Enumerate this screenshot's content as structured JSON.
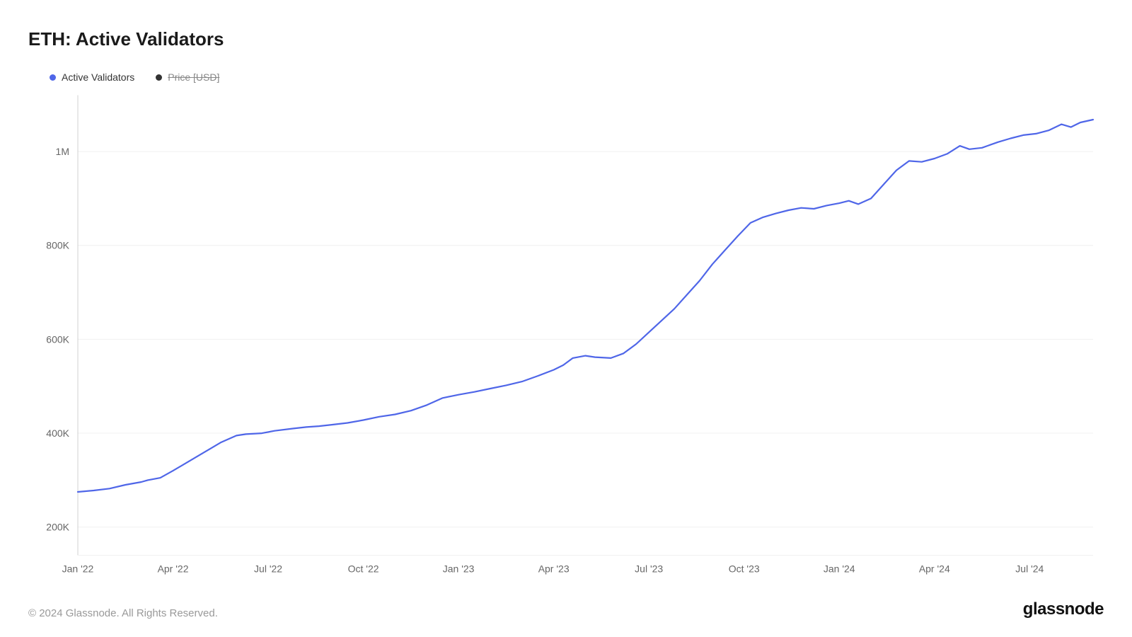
{
  "title": "ETH: Active Validators",
  "legend": [
    {
      "label": "Active Validators",
      "color": "#4f66e8",
      "disabled": false
    },
    {
      "label": "Price [USD]",
      "color": "#333333",
      "disabled": true
    }
  ],
  "copyright": "© 2024 Glassnode. All Rights Reserved.",
  "brand": "glassnode",
  "chart": {
    "type": "line",
    "background_color": "#ffffff",
    "grid_color": "#f0f0f0",
    "axis_color": "#d0d0d0",
    "tick_font_size": 14,
    "tick_color": "#666666",
    "line_width": 2.2,
    "x": {
      "min": 0,
      "max": 32,
      "ticks": [
        {
          "v": 0,
          "label": "Jan '22"
        },
        {
          "v": 3,
          "label": "Apr '22"
        },
        {
          "v": 6,
          "label": "Jul '22"
        },
        {
          "v": 9,
          "label": "Oct '22"
        },
        {
          "v": 12,
          "label": "Jan '23"
        },
        {
          "v": 15,
          "label": "Apr '23"
        },
        {
          "v": 18,
          "label": "Jul '23"
        },
        {
          "v": 21,
          "label": "Oct '23"
        },
        {
          "v": 24,
          "label": "Jan '24"
        },
        {
          "v": 27,
          "label": "Apr '24"
        },
        {
          "v": 30,
          "label": "Jul '24"
        }
      ]
    },
    "y": {
      "min": 140000,
      "max": 1120000,
      "ticks": [
        {
          "v": 200000,
          "label": "200K"
        },
        {
          "v": 400000,
          "label": "400K"
        },
        {
          "v": 600000,
          "label": "600K"
        },
        {
          "v": 800000,
          "label": "800K"
        },
        {
          "v": 1000000,
          "label": "1M"
        }
      ]
    },
    "series": [
      {
        "name": "Active Validators",
        "color": "#4f66e8",
        "points": [
          [
            0.0,
            275000
          ],
          [
            0.5,
            278000
          ],
          [
            1.0,
            282000
          ],
          [
            1.5,
            290000
          ],
          [
            2.0,
            296000
          ],
          [
            2.2,
            300000
          ],
          [
            2.6,
            305000
          ],
          [
            3.0,
            320000
          ],
          [
            3.5,
            340000
          ],
          [
            4.0,
            360000
          ],
          [
            4.5,
            380000
          ],
          [
            5.0,
            395000
          ],
          [
            5.3,
            398000
          ],
          [
            5.8,
            400000
          ],
          [
            6.2,
            405000
          ],
          [
            6.8,
            410000
          ],
          [
            7.2,
            413000
          ],
          [
            7.6,
            415000
          ],
          [
            8.0,
            418000
          ],
          [
            8.5,
            422000
          ],
          [
            9.0,
            428000
          ],
          [
            9.5,
            435000
          ],
          [
            10.0,
            440000
          ],
          [
            10.5,
            448000
          ],
          [
            11.0,
            460000
          ],
          [
            11.5,
            475000
          ],
          [
            12.0,
            482000
          ],
          [
            12.5,
            488000
          ],
          [
            13.0,
            495000
          ],
          [
            13.5,
            502000
          ],
          [
            14.0,
            510000
          ],
          [
            14.5,
            522000
          ],
          [
            15.0,
            535000
          ],
          [
            15.3,
            545000
          ],
          [
            15.6,
            560000
          ],
          [
            16.0,
            565000
          ],
          [
            16.3,
            562000
          ],
          [
            16.8,
            560000
          ],
          [
            17.2,
            570000
          ],
          [
            17.6,
            590000
          ],
          [
            18.0,
            615000
          ],
          [
            18.4,
            640000
          ],
          [
            18.8,
            665000
          ],
          [
            19.2,
            695000
          ],
          [
            19.6,
            725000
          ],
          [
            20.0,
            760000
          ],
          [
            20.4,
            790000
          ],
          [
            20.8,
            820000
          ],
          [
            21.2,
            848000
          ],
          [
            21.6,
            860000
          ],
          [
            22.0,
            868000
          ],
          [
            22.4,
            875000
          ],
          [
            22.8,
            880000
          ],
          [
            23.2,
            878000
          ],
          [
            23.6,
            885000
          ],
          [
            24.0,
            890000
          ],
          [
            24.3,
            895000
          ],
          [
            24.6,
            888000
          ],
          [
            25.0,
            900000
          ],
          [
            25.4,
            930000
          ],
          [
            25.8,
            960000
          ],
          [
            26.2,
            980000
          ],
          [
            26.6,
            978000
          ],
          [
            27.0,
            985000
          ],
          [
            27.4,
            995000
          ],
          [
            27.8,
            1012000
          ],
          [
            28.1,
            1005000
          ],
          [
            28.5,
            1008000
          ],
          [
            29.0,
            1020000
          ],
          [
            29.4,
            1028000
          ],
          [
            29.8,
            1035000
          ],
          [
            30.2,
            1038000
          ],
          [
            30.6,
            1045000
          ],
          [
            31.0,
            1058000
          ],
          [
            31.3,
            1052000
          ],
          [
            31.6,
            1062000
          ],
          [
            32.0,
            1068000
          ]
        ]
      }
    ]
  }
}
